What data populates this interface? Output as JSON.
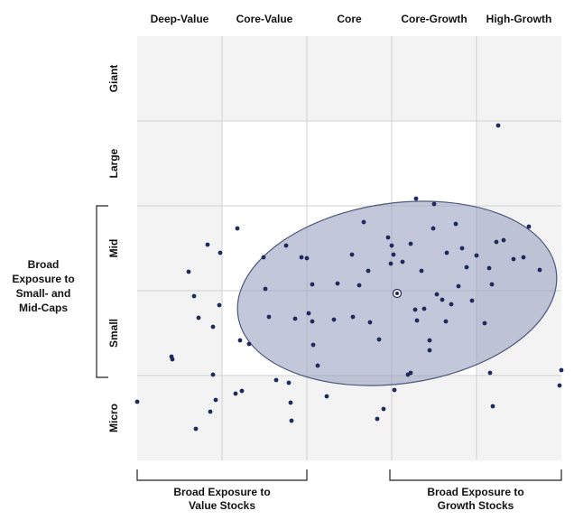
{
  "chart_data": {
    "type": "scatter",
    "x_categories": [
      "Deep-Value",
      "Core-Value",
      "Core",
      "Core-Growth",
      "High-Growth"
    ],
    "y_categories": [
      "Giant",
      "Large",
      "Mid",
      "Small",
      "Micro"
    ],
    "xlim": [
      0,
      470
    ],
    "ylim": [
      0,
      470
    ],
    "color": "#1f2a5c",
    "x": [
      0,
      38,
      39,
      57,
      63,
      65,
      68,
      78,
      81,
      84,
      84,
      87,
      91,
      92,
      111,
      109,
      114,
      116,
      124,
      140,
      142,
      146,
      154,
      165,
      168,
      170,
      171,
      175,
      182,
      188,
      190,
      194,
      194,
      195,
      200,
      210,
      218,
      222,
      238,
      239,
      246,
      251,
      256,
      258,
      266,
      268,
      273,
      278,
      281,
      282,
      284,
      285,
      294,
      300,
      303,
      308,
      309,
      310,
      315,
      318,
      324,
      328,
      329,
      332,
      338,
      342,
      343,
      348,
      353,
      356,
      360,
      365,
      371,
      376,
      385,
      390,
      393,
      398,
      400,
      406,
      417,
      428,
      434,
      446,
      470,
      468,
      394,
      391,
      303,
      324
    ],
    "values": [
      65,
      115,
      112,
      209,
      182,
      35,
      158,
      239,
      54,
      148,
      95,
      67,
      172,
      230,
      257,
      74,
      133,
      77,
      129,
      225,
      190,
      159,
      89,
      238,
      86,
      64,
      44,
      157,
      225,
      224,
      163,
      195,
      154,
      128,
      105,
      71,
      156,
      196,
      228,
      159,
      194,
      264,
      210,
      153,
      46,
      134,
      57,
      247,
      218,
      238,
      228,
      78,
      220,
      95,
      240,
      167,
      290,
      155,
      210,
      168,
      122,
      257,
      284,
      184,
      178,
      154,
      230,
      173,
      262,
      193,
      235,
      214,
      177,
      227,
      152,
      213,
      195,
      242,
      371,
      244,
      223,
      225,
      259,
      211,
      100,
      83,
      60,
      97,
      97,
      133
    ],
    "zone": {
      "center_x": 288,
      "center_y": 185,
      "radius_x": 178,
      "radius_y": 100,
      "angle": 8
    },
    "side_label": [
      "Broad",
      "Exposure to",
      "Small- and",
      "Mid-Caps"
    ],
    "bottom_left_label": [
      "Broad Exposure to",
      "Value Stocks"
    ],
    "bottom_right_label": [
      "Broad Exposure to",
      "Growth Stocks"
    ]
  }
}
